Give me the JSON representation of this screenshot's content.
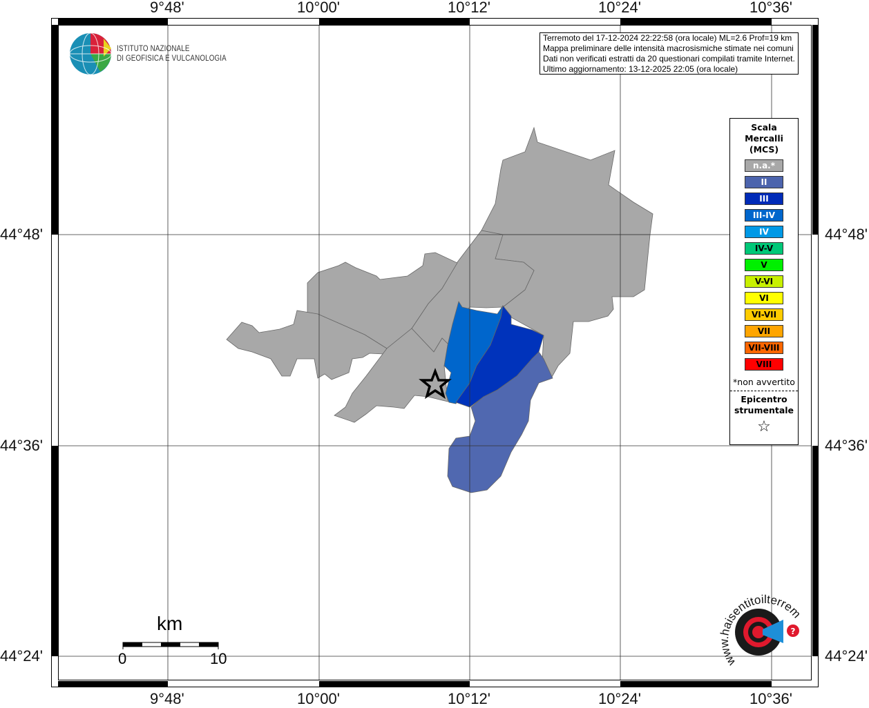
{
  "axes": {
    "top_longitudes": [
      "9°48'",
      "10°00'",
      "10°12'",
      "10°24'",
      "10°36'"
    ],
    "bottom_longitudes": [
      "9°48'",
      "10°00'",
      "10°12'",
      "10°24'",
      "10°36'"
    ],
    "left_latitudes": [
      "44°48'",
      "44°36'",
      "44°24'"
    ],
    "right_latitudes": [
      "44°48'",
      "44°36'",
      "44°24'"
    ]
  },
  "info": {
    "line1": "Terremoto del 17-12-2024 22:22:58 (ora locale) ML=2.6 Prof=19 km",
    "line2": "Mappa preliminare delle intensità macrosismiche stimate nei comuni",
    "line3": "Dati non verificati estratti da 20 questionari compilati tramite Internet.",
    "line4": "Ultimo aggiornamento: 13-12-2025 22:05 (ora locale)"
  },
  "logo_ingv": {
    "line1": "ISTITUTO NAZIONALE",
    "line2": "DI GEOFISICA E VULCANOLOGIA"
  },
  "logo_hsit": {
    "text": "www.haisentitoilterremoto.it"
  },
  "legend": {
    "title1": "Scala",
    "title2": "Mercalli",
    "title3": "(MCS)",
    "items": [
      {
        "label": "n.a.*",
        "color": "#a8a8a8",
        "text_color": "#ffffff"
      },
      {
        "label": "II",
        "color": "#4c64ad",
        "text_color": "#ffffff"
      },
      {
        "label": "III",
        "color": "#002bb8",
        "text_color": "#ffffff"
      },
      {
        "label": "III-IV",
        "color": "#0066cc",
        "text_color": "#ffffff"
      },
      {
        "label": "IV",
        "color": "#0099e6",
        "text_color": "#ffffff"
      },
      {
        "label": "IV-V",
        "color": "#00c878",
        "text_color": "#000000"
      },
      {
        "label": "V",
        "color": "#00f000",
        "text_color": "#000000"
      },
      {
        "label": "V-VI",
        "color": "#c8f000",
        "text_color": "#000000"
      },
      {
        "label": "VI",
        "color": "#ffff00",
        "text_color": "#000000"
      },
      {
        "label": "VI-VII",
        "color": "#ffcc00",
        "text_color": "#000000"
      },
      {
        "label": "VII",
        "color": "#ffa500",
        "text_color": "#000000"
      },
      {
        "label": "VII-VIII",
        "color": "#ff6600",
        "text_color": "#000000"
      },
      {
        "label": "VIII",
        "color": "#ff0000",
        "text_color": "#000000"
      }
    ],
    "note": "*non avvertito",
    "epicenter1": "Epicentro",
    "epicenter2": "strumentale",
    "epicenter_icon": "star-outline-icon"
  },
  "scalebar": {
    "unit": "km",
    "start": "0",
    "end": "10"
  },
  "map_colors": {
    "na": "#a8a8a8",
    "II": "#5068b0",
    "III": "#0033bb",
    "III-IV": "#0066cc"
  }
}
